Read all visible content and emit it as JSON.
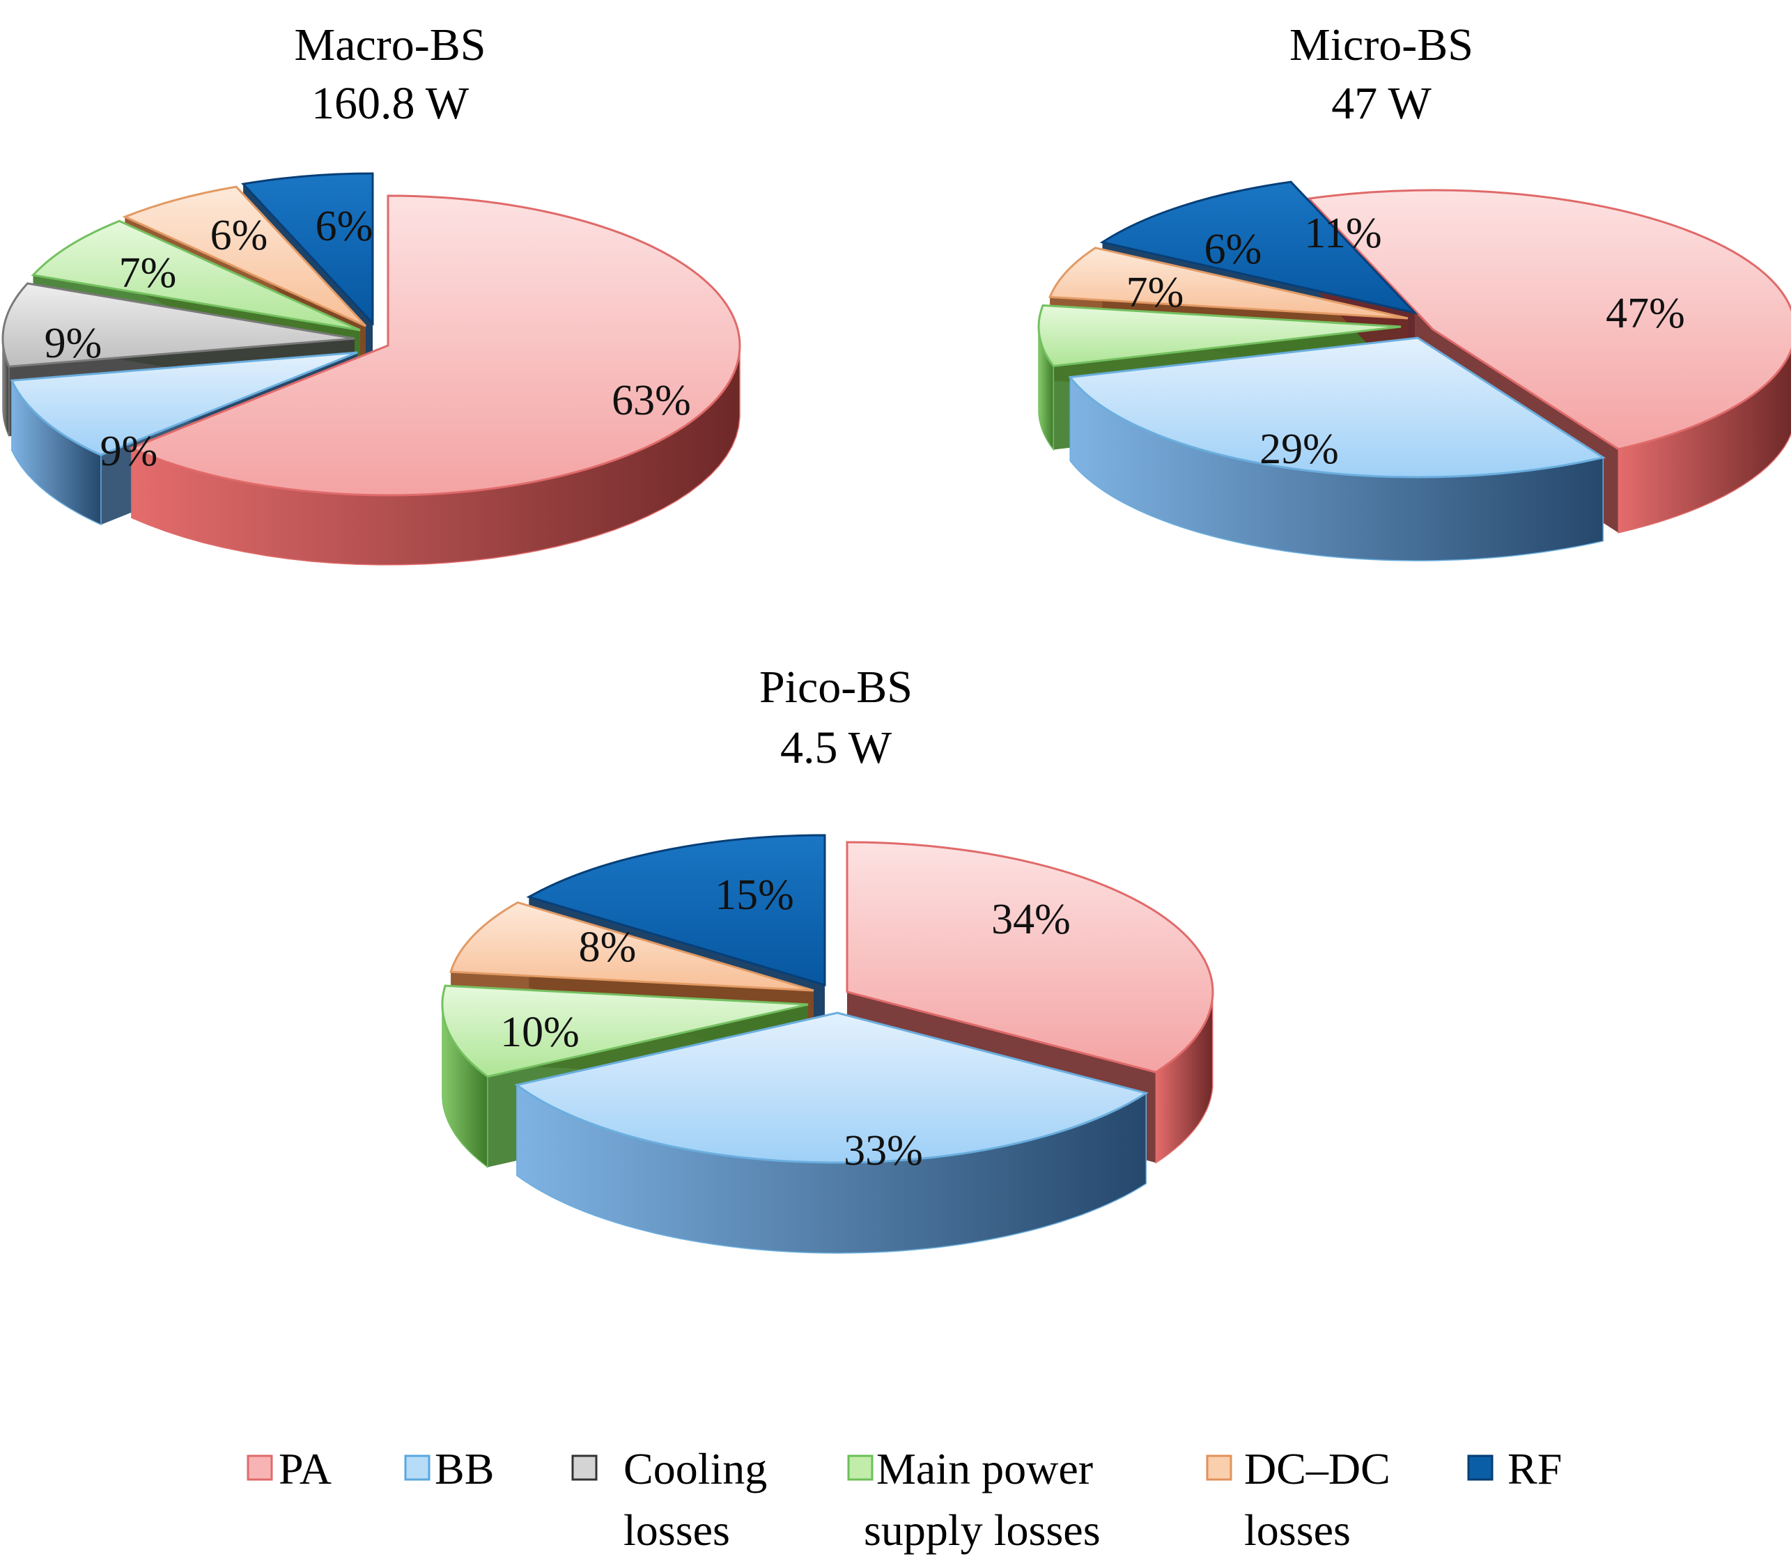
{
  "chart_data": [
    {
      "type": "pie",
      "title": "Macro-BS",
      "subtitle": "160.8 W",
      "slices": [
        {
          "category": "PA",
          "value": 63,
          "label": "63%"
        },
        {
          "category": "BB",
          "value": 9,
          "label": "9%"
        },
        {
          "category": "Cooling losses",
          "value": 9,
          "label": "9%"
        },
        {
          "category": "Main power supply losses",
          "value": 7,
          "label": "7%"
        },
        {
          "category": "DC–DC losses",
          "value": 6,
          "label": "6%"
        },
        {
          "category": "RF",
          "value": 6,
          "label": "6%"
        }
      ]
    },
    {
      "type": "pie",
      "title": "Micro-BS",
      "subtitle": "47 W",
      "slices": [
        {
          "category": "PA",
          "value": 47,
          "label": "47%"
        },
        {
          "category": "BB",
          "value": 29,
          "label": "29%"
        },
        {
          "category": "Main power supply losses",
          "value": 7,
          "label": "7%"
        },
        {
          "category": "DC–DC losses",
          "value": 6,
          "label": "6%"
        },
        {
          "category": "RF",
          "value": 11,
          "label": "11%"
        }
      ]
    },
    {
      "type": "pie",
      "title": "Pico-BS",
      "subtitle": "4.5 W",
      "slices": [
        {
          "category": "PA",
          "value": 34,
          "label": "34%"
        },
        {
          "category": "BB",
          "value": 33,
          "label": "33%"
        },
        {
          "category": "Main power supply losses",
          "value": 10,
          "label": "10%"
        },
        {
          "category": "DC–DC losses",
          "value": 8,
          "label": "8%"
        },
        {
          "category": "RF",
          "value": 15,
          "label": "15%"
        }
      ]
    }
  ],
  "legend": {
    "placement": "bottom",
    "items": [
      {
        "key": "PA",
        "lines": [
          "PA"
        ],
        "color": "#f58c8c"
      },
      {
        "key": "BB",
        "lines": [
          "BB"
        ],
        "color": "#8ec9f2"
      },
      {
        "key": "Cooling losses",
        "lines": [
          "Cooling",
          "losses"
        ],
        "color": "#c8c8c8"
      },
      {
        "key": "Main power supply losses",
        "lines": [
          "Main power",
          "supply losses"
        ],
        "color": "#9bdc7e"
      },
      {
        "key": "DC–DC losses",
        "lines": [
          "DC–DC",
          "losses"
        ],
        "color": "#f7b07a"
      },
      {
        "key": "RF",
        "lines": [
          "RF"
        ],
        "color": "#0a5ea6"
      }
    ]
  },
  "colors": {
    "PA": {
      "top_light": "#fde2e2",
      "top_dark": "#f4a3a3",
      "side_light": "#e46c6c",
      "side_dark": "#6e2828",
      "edge": "#e06a6a"
    },
    "BB": {
      "top_light": "#e3f1fd",
      "top_dark": "#9fd0f7",
      "side_light": "#7fb3e3",
      "side_dark": "#26486c",
      "edge": "#6aaede"
    },
    "Cooling losses": {
      "top_light": "#eeeeee",
      "top_dark": "#bdbdbd",
      "side_light": "#8a8a8a",
      "side_dark": "#3a3a3a",
      "edge": "#7a7a7a"
    },
    "Main power supply losses": {
      "top_light": "#e6f9dc",
      "top_dark": "#aee596",
      "side_light": "#86c96a",
      "side_dark": "#3d7a2a",
      "edge": "#74c060"
    },
    "DC–DC losses": {
      "top_light": "#fde9d9",
      "top_dark": "#f8bf97",
      "side_light": "#e89a62",
      "side_dark": "#8a4a1e",
      "edge": "#e29a64"
    },
    "RF": {
      "top_light": "#1a76c4",
      "top_dark": "#0757a0",
      "side_light": "#0a5aa0",
      "side_dark": "#052f58",
      "edge": "#073f78"
    }
  }
}
